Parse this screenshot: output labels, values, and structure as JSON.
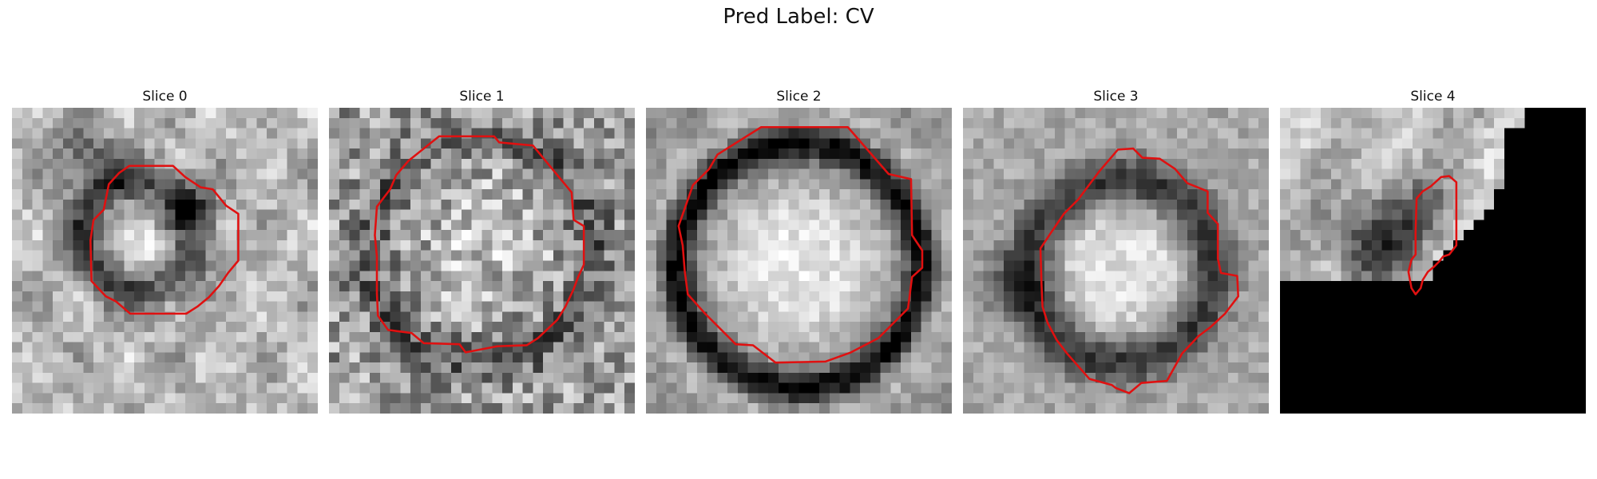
{
  "figure": {
    "title": "Pred Label: CV"
  },
  "panels": [
    {
      "title": "Slice 0",
      "contour_color": "#e01010",
      "mask": "none"
    },
    {
      "title": "Slice 1",
      "contour_color": "#e01010",
      "mask": "none"
    },
    {
      "title": "Slice 2",
      "contour_color": "#e01010",
      "mask": "none"
    },
    {
      "title": "Slice 3",
      "contour_color": "#e01010",
      "mask": "none"
    },
    {
      "title": "Slice 4",
      "contour_color": "#e01010",
      "mask": "lower-right staircase black region"
    }
  ]
}
